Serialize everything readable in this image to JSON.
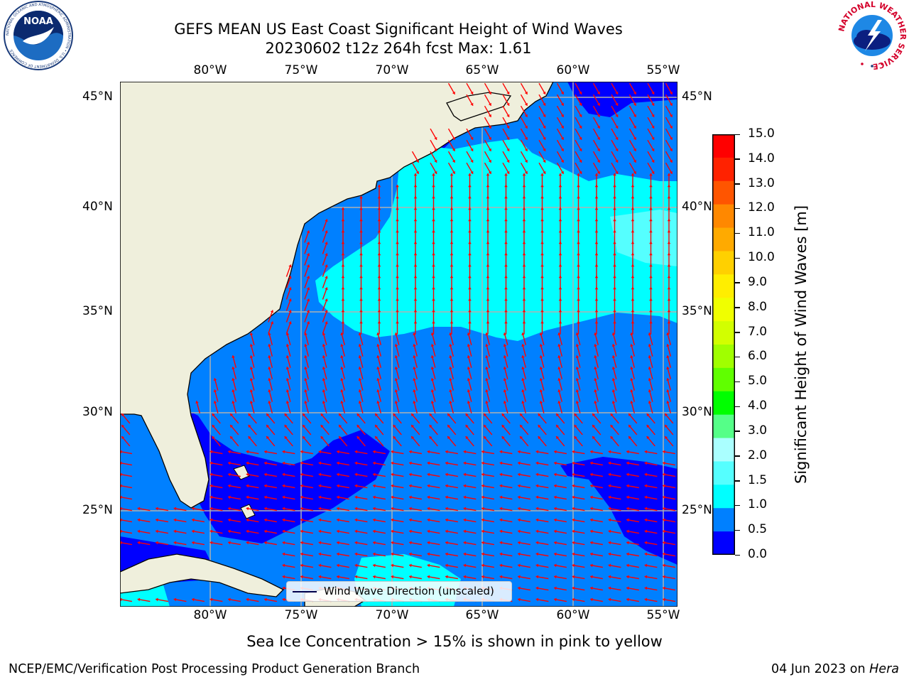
{
  "title": {
    "line1": "GEFS MEAN US East Coast Significant Height of Wind Waves",
    "line2": "20230602 t12z 264h fcst   Max: 1.61"
  },
  "map": {
    "lon_ticks": [
      "80°W",
      "75°W",
      "70°W",
      "65°W",
      "60°W",
      "55°W"
    ],
    "lat_ticks": [
      "45°N",
      "40°N",
      "35°N",
      "30°N",
      "25°N"
    ],
    "legend_label": "Wind Wave Direction (unscaled)",
    "land_color": "#efefdc",
    "arrow_color": "#ff0000",
    "grid_color": "#b0b0b0"
  },
  "colorbar": {
    "label": "Significant Height of Wind Waves [m]",
    "ticks": [
      "15.0",
      "14.0",
      "13.0",
      "12.0",
      "11.0",
      "10.0",
      "9.0",
      "8.0",
      "7.0",
      "6.0",
      "5.0",
      "4.0",
      "3.0",
      "2.0",
      "1.5",
      "1.0",
      "0.5",
      "0.0"
    ],
    "colors": [
      "#ff0000",
      "#ff2200",
      "#ff5500",
      "#ff8800",
      "#ffaa00",
      "#ffd000",
      "#ffee00",
      "#f0ff00",
      "#d2ff00",
      "#a0ff00",
      "#60ff00",
      "#00ff00",
      "#55ff88",
      "#aaffff",
      "#55ffff",
      "#00ffff",
      "#0080ff",
      "#0000ff"
    ]
  },
  "note": "Sea Ice Concentration > 15% is shown in pink to yellow",
  "footer": {
    "left": "NCEP/EMC/Verification Post Processing Product Generation Branch",
    "date": "04 Jun 2023 on ",
    "machine": "Hera"
  },
  "logos": {
    "noaa": "NOAA",
    "noaa_ring": "NATIONAL OCEANIC AND ATMOSPHERIC ADMINISTRATION • U.S. DEPARTMENT OF COMMERCE",
    "nws_ring": "NATIONAL WEATHER SERVICE"
  }
}
